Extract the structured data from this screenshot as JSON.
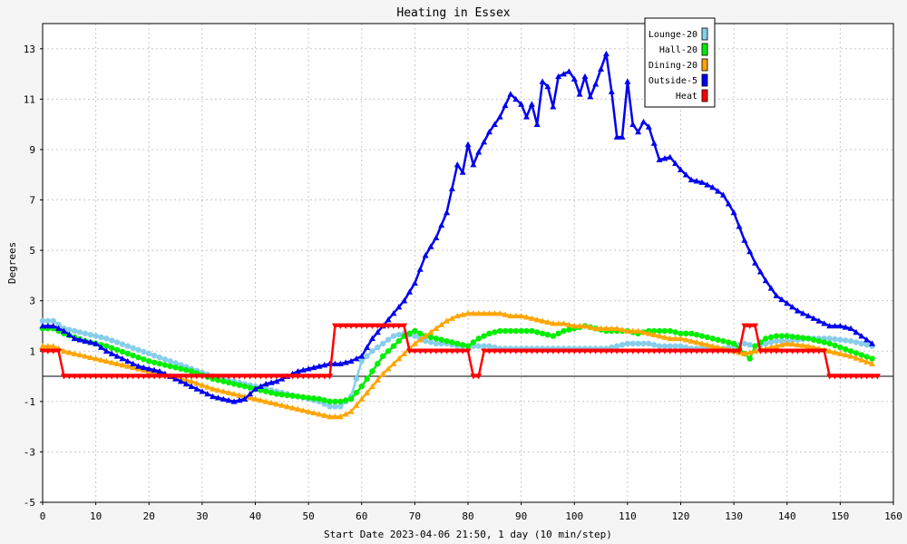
{
  "chart_data": {
    "type": "line",
    "title": "Heating in Essex",
    "xlabel": "Start Date 2023-04-06 21:50, 1 day (10 min/step)",
    "ylabel": "Degrees",
    "xlim": [
      0,
      160
    ],
    "ylim": [
      -5,
      14
    ],
    "xticks": [
      0,
      10,
      20,
      30,
      40,
      50,
      60,
      70,
      80,
      90,
      100,
      110,
      120,
      130,
      140,
      150,
      160
    ],
    "yticks": [
      -5,
      -3,
      -1,
      1,
      3,
      5,
      7,
      9,
      11,
      13
    ],
    "grid": true,
    "legend_position": "top-right",
    "series": [
      {
        "name": "Lounge-20",
        "color": "#87ceeb",
        "marker": "circle",
        "points": [
          [
            0,
            2.2
          ],
          [
            2,
            2.2
          ],
          [
            4,
            1.9
          ],
          [
            8,
            1.7
          ],
          [
            12,
            1.5
          ],
          [
            16,
            1.2
          ],
          [
            20,
            0.9
          ],
          [
            24,
            0.6
          ],
          [
            28,
            0.3
          ],
          [
            32,
            0.0
          ],
          [
            36,
            -0.2
          ],
          [
            40,
            -0.4
          ],
          [
            44,
            -0.6
          ],
          [
            48,
            -0.8
          ],
          [
            52,
            -1.0
          ],
          [
            54,
            -1.2
          ],
          [
            56,
            -1.2
          ],
          [
            58,
            -0.8
          ],
          [
            60,
            0.6
          ],
          [
            62,
            1.0
          ],
          [
            64,
            1.3
          ],
          [
            66,
            1.6
          ],
          [
            68,
            1.7
          ],
          [
            70,
            1.6
          ],
          [
            72,
            1.4
          ],
          [
            74,
            1.3
          ],
          [
            76,
            1.3
          ],
          [
            78,
            1.2
          ],
          [
            80,
            1.2
          ],
          [
            82,
            1.2
          ],
          [
            84,
            1.2
          ],
          [
            86,
            1.1
          ],
          [
            88,
            1.1
          ],
          [
            90,
            1.1
          ],
          [
            92,
            1.1
          ],
          [
            94,
            1.1
          ],
          [
            96,
            1.1
          ],
          [
            98,
            1.1
          ],
          [
            100,
            1.1
          ],
          [
            102,
            1.1
          ],
          [
            104,
            1.1
          ],
          [
            106,
            1.1
          ],
          [
            108,
            1.2
          ],
          [
            110,
            1.3
          ],
          [
            112,
            1.3
          ],
          [
            114,
            1.3
          ],
          [
            116,
            1.2
          ],
          [
            118,
            1.2
          ],
          [
            120,
            1.2
          ],
          [
            122,
            1.1
          ],
          [
            124,
            1.1
          ],
          [
            126,
            1.1
          ],
          [
            128,
            1.1
          ],
          [
            130,
            1.2
          ],
          [
            132,
            1.3
          ],
          [
            134,
            1.2
          ],
          [
            136,
            1.3
          ],
          [
            138,
            1.4
          ],
          [
            140,
            1.4
          ],
          [
            144,
            1.5
          ],
          [
            148,
            1.5
          ],
          [
            152,
            1.4
          ],
          [
            156,
            1.2
          ]
        ]
      },
      {
        "name": "Hall-20",
        "color": "#00ee00",
        "marker": "circle",
        "points": [
          [
            0,
            1.9
          ],
          [
            2,
            1.9
          ],
          [
            4,
            1.7
          ],
          [
            8,
            1.4
          ],
          [
            12,
            1.2
          ],
          [
            16,
            0.9
          ],
          [
            20,
            0.6
          ],
          [
            24,
            0.4
          ],
          [
            28,
            0.2
          ],
          [
            32,
            -0.1
          ],
          [
            36,
            -0.3
          ],
          [
            40,
            -0.5
          ],
          [
            44,
            -0.7
          ],
          [
            48,
            -0.8
          ],
          [
            52,
            -0.9
          ],
          [
            54,
            -1.0
          ],
          [
            56,
            -1.0
          ],
          [
            58,
            -0.9
          ],
          [
            60,
            -0.4
          ],
          [
            62,
            0.2
          ],
          [
            64,
            0.8
          ],
          [
            66,
            1.2
          ],
          [
            68,
            1.6
          ],
          [
            70,
            1.8
          ],
          [
            72,
            1.6
          ],
          [
            74,
            1.5
          ],
          [
            76,
            1.4
          ],
          [
            78,
            1.3
          ],
          [
            80,
            1.2
          ],
          [
            82,
            1.5
          ],
          [
            84,
            1.7
          ],
          [
            86,
            1.8
          ],
          [
            88,
            1.8
          ],
          [
            90,
            1.8
          ],
          [
            92,
            1.8
          ],
          [
            94,
            1.7
          ],
          [
            96,
            1.6
          ],
          [
            98,
            1.8
          ],
          [
            100,
            1.9
          ],
          [
            102,
            2.0
          ],
          [
            104,
            1.9
          ],
          [
            106,
            1.8
          ],
          [
            108,
            1.8
          ],
          [
            110,
            1.8
          ],
          [
            112,
            1.7
          ],
          [
            114,
            1.8
          ],
          [
            116,
            1.8
          ],
          [
            118,
            1.8
          ],
          [
            120,
            1.7
          ],
          [
            122,
            1.7
          ],
          [
            124,
            1.6
          ],
          [
            126,
            1.5
          ],
          [
            128,
            1.4
          ],
          [
            130,
            1.3
          ],
          [
            132,
            0.9
          ],
          [
            133,
            0.7
          ],
          [
            134,
            1.2
          ],
          [
            136,
            1.5
          ],
          [
            138,
            1.6
          ],
          [
            140,
            1.6
          ],
          [
            144,
            1.5
          ],
          [
            148,
            1.3
          ],
          [
            152,
            1.0
          ],
          [
            156,
            0.7
          ]
        ]
      },
      {
        "name": "Dining-20",
        "color": "#ffa500",
        "marker": "triangle",
        "points": [
          [
            0,
            1.2
          ],
          [
            2,
            1.2
          ],
          [
            4,
            1.0
          ],
          [
            8,
            0.8
          ],
          [
            12,
            0.6
          ],
          [
            16,
            0.4
          ],
          [
            20,
            0.2
          ],
          [
            24,
            0.0
          ],
          [
            28,
            -0.2
          ],
          [
            32,
            -0.5
          ],
          [
            36,
            -0.7
          ],
          [
            40,
            -0.9
          ],
          [
            44,
            -1.1
          ],
          [
            48,
            -1.3
          ],
          [
            52,
            -1.5
          ],
          [
            54,
            -1.6
          ],
          [
            56,
            -1.6
          ],
          [
            58,
            -1.4
          ],
          [
            60,
            -0.9
          ],
          [
            62,
            -0.4
          ],
          [
            64,
            0.1
          ],
          [
            66,
            0.5
          ],
          [
            68,
            0.9
          ],
          [
            70,
            1.3
          ],
          [
            72,
            1.6
          ],
          [
            74,
            1.9
          ],
          [
            76,
            2.2
          ],
          [
            78,
            2.4
          ],
          [
            80,
            2.5
          ],
          [
            82,
            2.5
          ],
          [
            84,
            2.5
          ],
          [
            86,
            2.5
          ],
          [
            88,
            2.4
          ],
          [
            90,
            2.4
          ],
          [
            92,
            2.3
          ],
          [
            94,
            2.2
          ],
          [
            96,
            2.1
          ],
          [
            98,
            2.1
          ],
          [
            100,
            2.0
          ],
          [
            102,
            2.0
          ],
          [
            104,
            1.9
          ],
          [
            106,
            1.9
          ],
          [
            108,
            1.9
          ],
          [
            110,
            1.8
          ],
          [
            112,
            1.8
          ],
          [
            114,
            1.7
          ],
          [
            116,
            1.6
          ],
          [
            118,
            1.5
          ],
          [
            120,
            1.5
          ],
          [
            122,
            1.4
          ],
          [
            124,
            1.3
          ],
          [
            126,
            1.2
          ],
          [
            128,
            1.1
          ],
          [
            130,
            1.0
          ],
          [
            132,
            0.9
          ],
          [
            134,
            1.0
          ],
          [
            136,
            1.1
          ],
          [
            138,
            1.2
          ],
          [
            140,
            1.3
          ],
          [
            144,
            1.2
          ],
          [
            148,
            1.0
          ],
          [
            152,
            0.8
          ],
          [
            156,
            0.5
          ]
        ]
      },
      {
        "name": "Outside-5",
        "color": "#0000ee",
        "marker": "triangle",
        "points": [
          [
            0,
            2.0
          ],
          [
            2,
            2.0
          ],
          [
            4,
            1.8
          ],
          [
            6,
            1.5
          ],
          [
            8,
            1.4
          ],
          [
            10,
            1.3
          ],
          [
            12,
            1.0
          ],
          [
            14,
            0.8
          ],
          [
            16,
            0.6
          ],
          [
            18,
            0.4
          ],
          [
            20,
            0.3
          ],
          [
            22,
            0.2
          ],
          [
            24,
            0.0
          ],
          [
            26,
            -0.2
          ],
          [
            28,
            -0.4
          ],
          [
            30,
            -0.6
          ],
          [
            32,
            -0.8
          ],
          [
            34,
            -0.9
          ],
          [
            36,
            -1.0
          ],
          [
            38,
            -0.9
          ],
          [
            40,
            -0.5
          ],
          [
            42,
            -0.3
          ],
          [
            44,
            -0.2
          ],
          [
            46,
            0.0
          ],
          [
            48,
            0.2
          ],
          [
            50,
            0.3
          ],
          [
            52,
            0.4
          ],
          [
            54,
            0.5
          ],
          [
            56,
            0.5
          ],
          [
            58,
            0.6
          ],
          [
            60,
            0.8
          ],
          [
            62,
            1.5
          ],
          [
            64,
            2.0
          ],
          [
            66,
            2.5
          ],
          [
            68,
            3.0
          ],
          [
            70,
            3.7
          ],
          [
            72,
            4.8
          ],
          [
            74,
            5.5
          ],
          [
            76,
            6.5
          ],
          [
            78,
            8.4
          ],
          [
            79,
            8.1
          ],
          [
            80,
            9.2
          ],
          [
            81,
            8.4
          ],
          [
            82,
            8.9
          ],
          [
            84,
            9.7
          ],
          [
            86,
            10.3
          ],
          [
            88,
            11.2
          ],
          [
            89,
            11.0
          ],
          [
            90,
            10.8
          ],
          [
            91,
            10.3
          ],
          [
            92,
            10.8
          ],
          [
            93,
            10.0
          ],
          [
            94,
            11.7
          ],
          [
            95,
            11.5
          ],
          [
            96,
            10.7
          ],
          [
            97,
            11.9
          ],
          [
            99,
            12.1
          ],
          [
            100,
            11.8
          ],
          [
            101,
            11.2
          ],
          [
            102,
            11.9
          ],
          [
            103,
            11.1
          ],
          [
            104,
            11.6
          ],
          [
            106,
            12.8
          ],
          [
            107,
            11.3
          ],
          [
            108,
            9.5
          ],
          [
            109,
            9.5
          ],
          [
            110,
            11.7
          ],
          [
            111,
            10.0
          ],
          [
            112,
            9.7
          ],
          [
            113,
            10.1
          ],
          [
            114,
            9.9
          ],
          [
            116,
            8.6
          ],
          [
            118,
            8.7
          ],
          [
            120,
            8.2
          ],
          [
            122,
            7.8
          ],
          [
            124,
            7.7
          ],
          [
            126,
            7.5
          ],
          [
            128,
            7.2
          ],
          [
            130,
            6.5
          ],
          [
            132,
            5.4
          ],
          [
            134,
            4.5
          ],
          [
            136,
            3.8
          ],
          [
            138,
            3.2
          ],
          [
            140,
            2.9
          ],
          [
            142,
            2.6
          ],
          [
            144,
            2.4
          ],
          [
            146,
            2.2
          ],
          [
            148,
            2.0
          ],
          [
            150,
            2.0
          ],
          [
            152,
            1.9
          ],
          [
            154,
            1.6
          ],
          [
            156,
            1.3
          ]
        ]
      },
      {
        "name": "Heat",
        "color": "#ff0000",
        "marker": "triangle-down",
        "points": [
          [
            0,
            1
          ],
          [
            3,
            1
          ],
          [
            4,
            0
          ],
          [
            54,
            0
          ],
          [
            55,
            2
          ],
          [
            68,
            2
          ],
          [
            69,
            1
          ],
          [
            80,
            1
          ],
          [
            81,
            0
          ],
          [
            82,
            0
          ],
          [
            83,
            1
          ],
          [
            131,
            1
          ],
          [
            132,
            2
          ],
          [
            134,
            2
          ],
          [
            135,
            1
          ],
          [
            147,
            1
          ],
          [
            148,
            0
          ],
          [
            157,
            0
          ]
        ]
      }
    ]
  }
}
